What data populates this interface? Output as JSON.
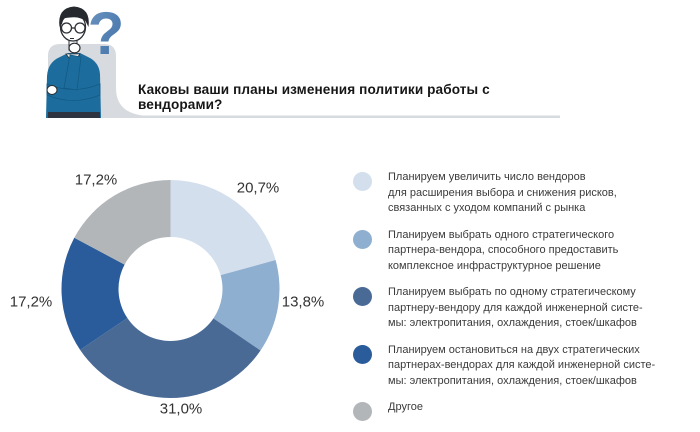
{
  "header": {
    "title": "Каковы ваши планы изменения политики работы с вендорами?",
    "illustration": {
      "description": "thinking man with question mark over speech bubble",
      "question_mark_glyph": "?",
      "colors": {
        "bubble": "#d7dade",
        "rule_line": "#cfd4dc",
        "question_mark": "#4c7eb3",
        "shirt": "#1c6d9d",
        "hair": "#26292e",
        "outline": "#2b2e34",
        "skin": "#ffffff",
        "pants": "#2e3440"
      }
    }
  },
  "chart_data": {
    "type": "pie",
    "subtype": "donut",
    "title": "Каковы ваши планы изменения политики работы с вендорами?",
    "categories": [
      "Планируем увеличить число вендоров для расширения выбора и снижения рисков, связанных с уходом компаний с рынка",
      "Планируем выбрать одного стратегического партнера-вендора, способного предоставить комплексное инфраструктурное решение",
      "Планируем выбрать по одному стратегическому партнеру-вендору для каждой инженерной системы: электропитания, охлаждения, стоек/шкафов",
      "Планируем остановиться на двух стратегических партнерах-вендорах для каждой инженерной системы: электропитания, охлаждения, стоек/шкафов",
      "Другое"
    ],
    "values": [
      20.7,
      13.8,
      31.0,
      17.2,
      17.2
    ],
    "labels": [
      "20,7%",
      "13,8%",
      "31,0%",
      "17,2%",
      "17,2%"
    ],
    "colors": [
      "#d4dfed",
      "#8fafd0",
      "#4a6a96",
      "#2a5c9b",
      "#b3b6b9"
    ],
    "start_angle_deg": 0,
    "direction": "clockwise",
    "inner_radius_ratio": 0.48,
    "legend_position": "right",
    "grid": false
  },
  "legend": {
    "items": [
      {
        "color": "#d4dfed",
        "label_lines": [
          "Планируем увеличить число вендоров",
          "для расширения выбора и снижения рисков,",
          "связанных с уходом компаний с рынка"
        ]
      },
      {
        "color": "#8fafd0",
        "label_lines": [
          "Планируем выбрать одного стратегического",
          "партнера-вендора, способного предоставить",
          "комплексное инфраструктурное решение"
        ]
      },
      {
        "color": "#4a6a96",
        "label_lines": [
          "Планируем выбрать по одному стратегическому",
          "партнеру-вендору для каждой инженерной систе-",
          "мы: электропитания, охлаждения, стоек/шкафов"
        ]
      },
      {
        "color": "#2a5c9b",
        "label_lines": [
          "Планируем остановиться на двух стратегических",
          "партнерах-вендорах для каждой инженерной систе-",
          "мы: электропитания, охлаждения, стоек/шкафов"
        ]
      },
      {
        "color": "#b3b6b9",
        "label_lines": [
          "Другое"
        ]
      }
    ]
  }
}
